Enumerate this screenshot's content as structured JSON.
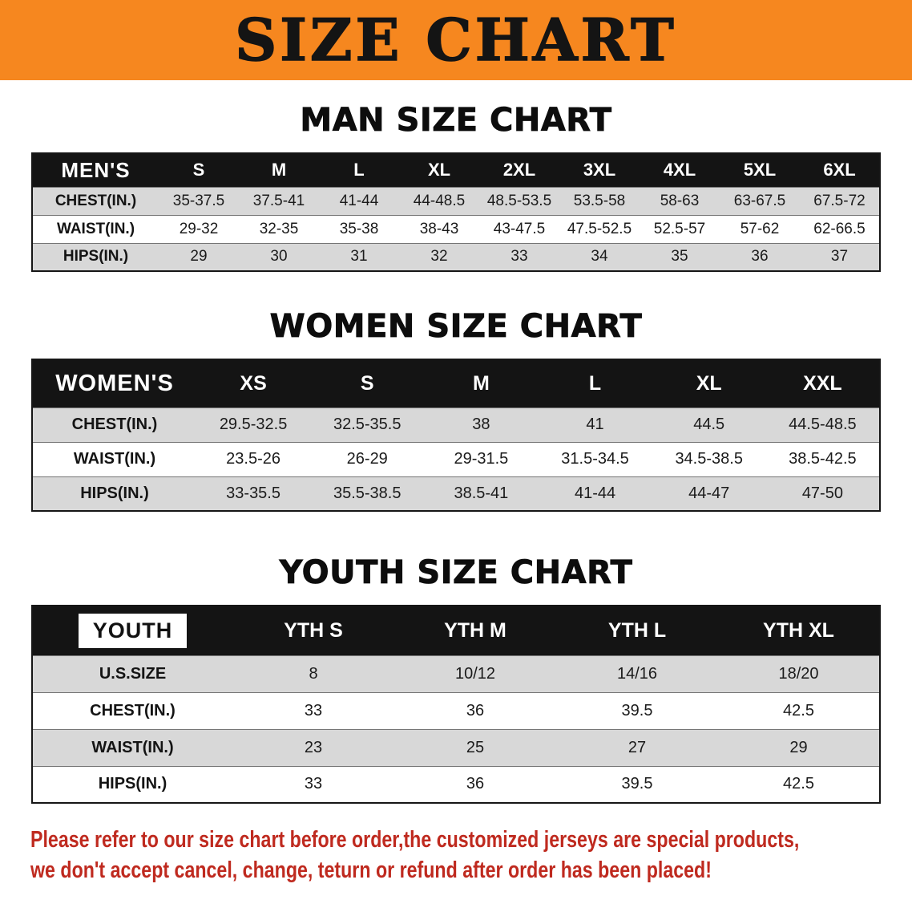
{
  "banner": {
    "title": "SIZE CHART",
    "bg_color": "#f6871f",
    "text_color": "#141414"
  },
  "sections": [
    {
      "id": "men",
      "heading": "MAN SIZE CHART",
      "table": {
        "header_label": "MEN'S",
        "columns": [
          "S",
          "M",
          "L",
          "XL",
          "2XL",
          "3XL",
          "4XL",
          "5XL",
          "6XL"
        ],
        "rows": [
          {
            "label": "CHEST(IN.)",
            "values": [
              "35-37.5",
              "37.5-41",
              "41-44",
              "44-48.5",
              "48.5-53.5",
              "53.5-58",
              "58-63",
              "63-67.5",
              "67.5-72"
            ]
          },
          {
            "label": "WAIST(IN.)",
            "values": [
              "29-32",
              "32-35",
              "35-38",
              "38-43",
              "43-47.5",
              "47.5-52.5",
              "52.5-57",
              "57-62",
              "62-66.5"
            ]
          },
          {
            "label": "HIPS(IN.)",
            "values": [
              "29",
              "30",
              "31",
              "32",
              "33",
              "34",
              "35",
              "36",
              "37"
            ]
          }
        ]
      }
    },
    {
      "id": "women",
      "heading": "WOMEN SIZE CHART",
      "table": {
        "header_label": "WOMEN'S",
        "columns": [
          "XS",
          "S",
          "M",
          "L",
          "XL",
          "XXL"
        ],
        "rows": [
          {
            "label": "CHEST(IN.)",
            "values": [
              "29.5-32.5",
              "32.5-35.5",
              "38",
              "41",
              "44.5",
              "44.5-48.5"
            ]
          },
          {
            "label": "WAIST(IN.)",
            "values": [
              "23.5-26",
              "26-29",
              "29-31.5",
              "31.5-34.5",
              "34.5-38.5",
              "38.5-42.5"
            ]
          },
          {
            "label": "HIPS(IN.)",
            "values": [
              "33-35.5",
              "35.5-38.5",
              "38.5-41",
              "41-44",
              "44-47",
              "47-50"
            ]
          }
        ]
      }
    },
    {
      "id": "youth",
      "heading": "YOUTH SIZE CHART",
      "table": {
        "header_label": "YOUTH",
        "columns": [
          "YTH S",
          "YTH M",
          "YTH L",
          "YTH XL"
        ],
        "rows": [
          {
            "label": "U.S.SIZE",
            "values": [
              "8",
              "10/12",
              "14/16",
              "18/20"
            ]
          },
          {
            "label": "CHEST(IN.)",
            "values": [
              "33",
              "36",
              "39.5",
              "42.5"
            ]
          },
          {
            "label": "WAIST(IN.)",
            "values": [
              "23",
              "25",
              "27",
              "29"
            ]
          },
          {
            "label": "HIPS(IN.)",
            "values": [
              "33",
              "36",
              "39.5",
              "42.5"
            ]
          }
        ]
      }
    }
  ],
  "disclaimer": {
    "line1": "Please refer to our size chart before order,the customized jerseys are special products,",
    "line2": "we don't accept cancel, change, teturn or refund after order has been placed!",
    "text_color": "#bf2a1f"
  }
}
